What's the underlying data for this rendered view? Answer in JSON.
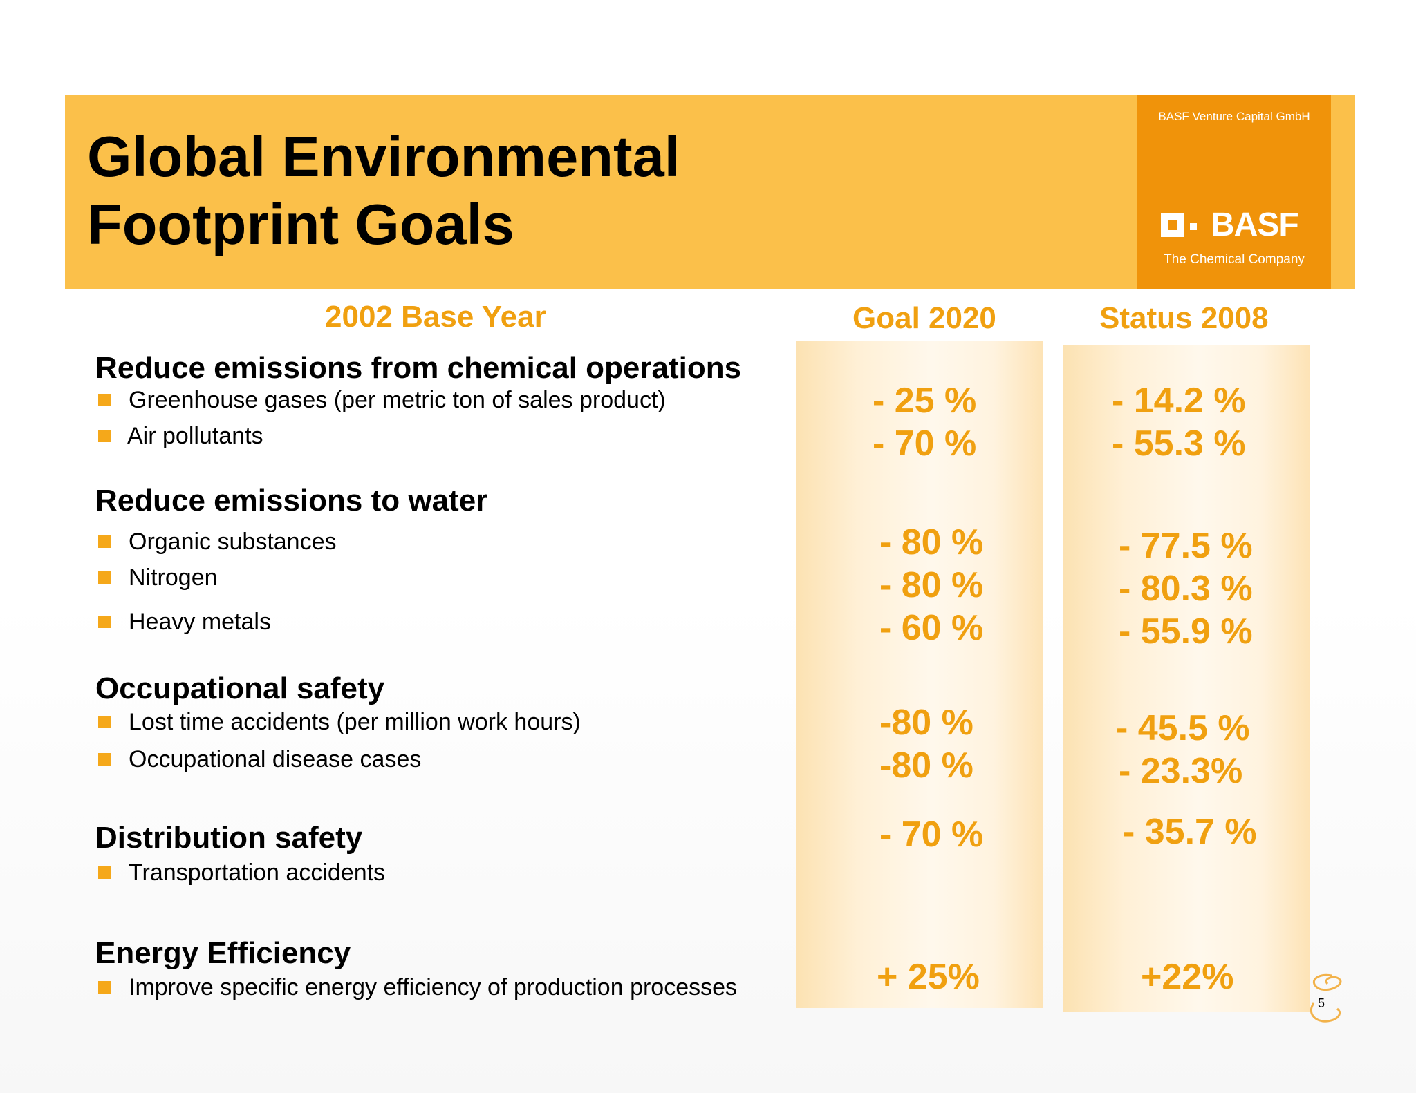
{
  "header": {
    "title_line1": "Global Environmental",
    "title_line2": "Footprint Goals",
    "company_unit": "BASF Venture Capital GmbH",
    "logo_word": "BASF",
    "tagline": "The Chemical Company"
  },
  "columns": {
    "base": "2002 Base Year",
    "goal": "Goal 2020",
    "status": "Status 2008"
  },
  "sections": [
    {
      "heading": "Reduce emissions from chemical operations",
      "items": [
        {
          "label": "Greenhouse gases (per metric ton of sales product)",
          "goal": "- 25 %",
          "status": "- 14.2 %"
        },
        {
          "label": "Air pollutants",
          "goal": "- 70 %",
          "status": "- 55.3 %"
        }
      ]
    },
    {
      "heading": "Reduce emissions to water",
      "items": [
        {
          "label": "Organic substances",
          "goal": "- 80 %",
          "status": "- 77.5 %"
        },
        {
          "label": "Nitrogen",
          "goal": "- 80 %",
          "status": "- 80.3 %"
        },
        {
          "label": "Heavy metals",
          "goal": "- 60 %",
          "status": "- 55.9 %"
        }
      ]
    },
    {
      "heading": "Occupational safety",
      "items": [
        {
          "label": "Lost time accidents (per million work hours)",
          "goal": "-80 %",
          "status": "- 45.5 %"
        },
        {
          "label": "Occupational disease cases",
          "goal": "-80 %",
          "status": "- 23.3%"
        }
      ]
    },
    {
      "heading": "Distribution safety",
      "items": [
        {
          "label": "Transportation accidents",
          "goal": "- 70 %",
          "status": "- 35.7 %"
        }
      ]
    },
    {
      "heading": "Energy Efficiency",
      "items": [
        {
          "label": "Improve specific energy efficiency of production processes",
          "goal": "+ 25%",
          "status": "+22%"
        }
      ]
    }
  ],
  "page_number": "5",
  "colors": {
    "banner": "#fbc04a",
    "logo_box": "#f0930a",
    "accent_text": "#f0a010",
    "bullet": "#f5a81a"
  }
}
